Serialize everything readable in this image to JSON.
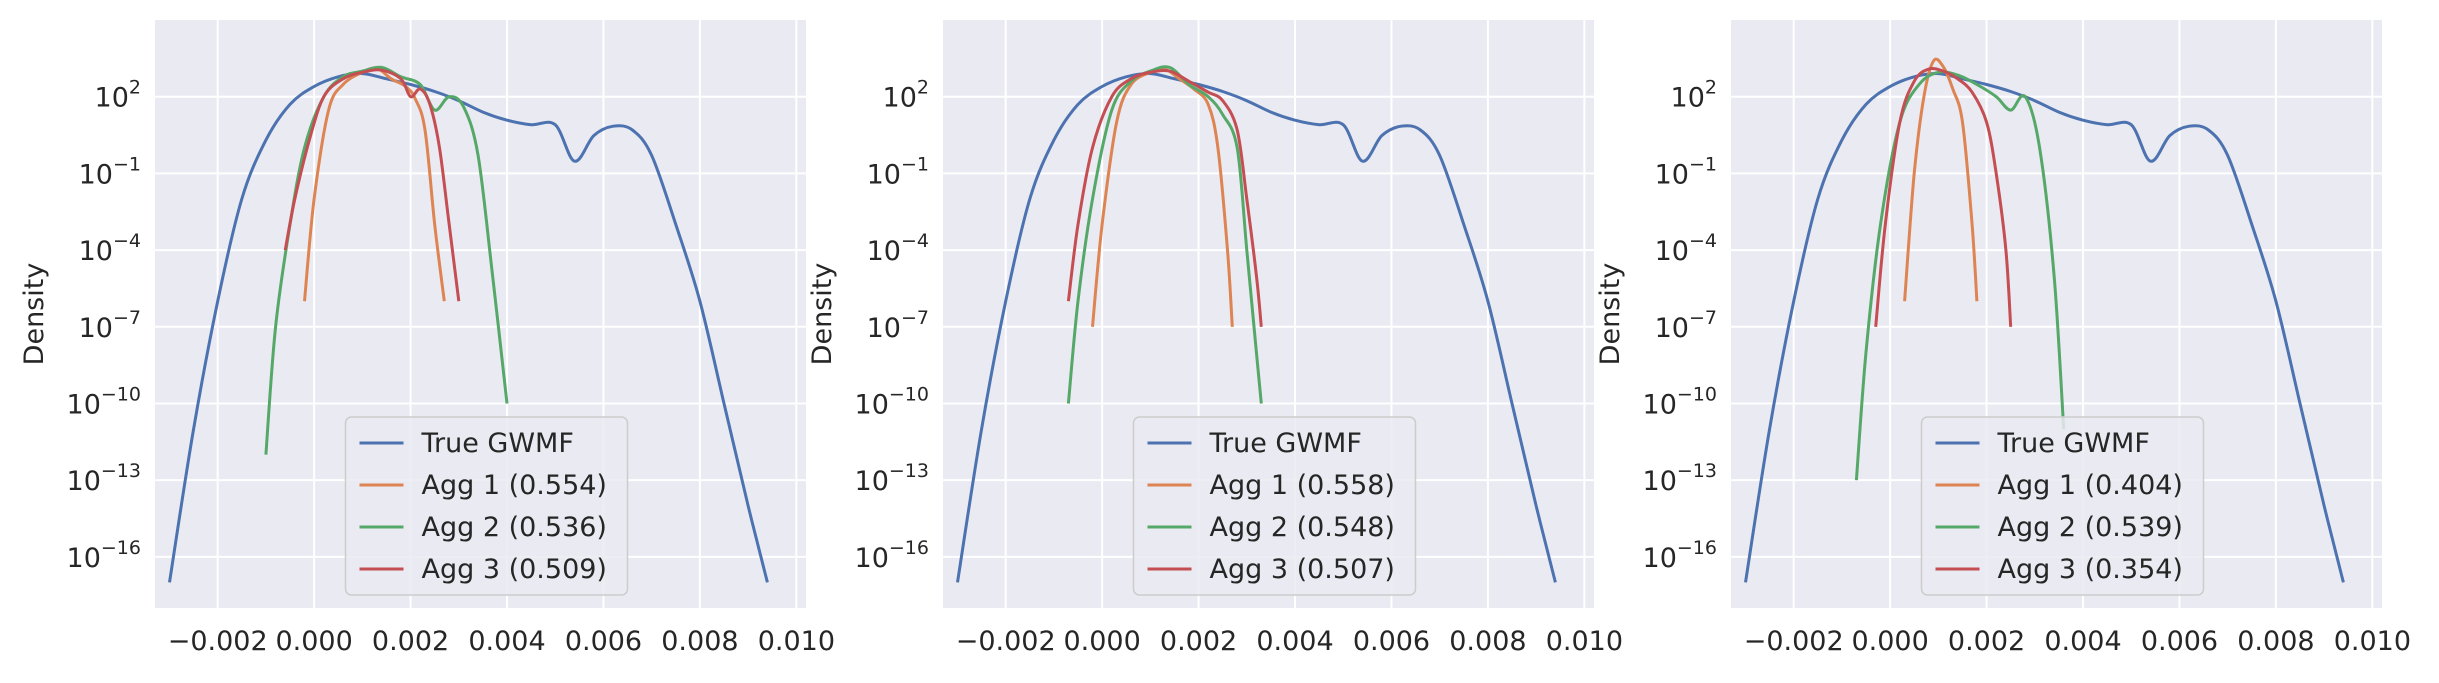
{
  "figure": {
    "background": "#ffffff",
    "panel_background": "#eaeaf2",
    "grid_color": "#ffffff"
  },
  "series_colors": {
    "True GWMF": "#4c72b0",
    "Agg 1": "#dd8452",
    "Agg 2": "#55a868",
    "Agg 3": "#c44e52"
  },
  "chart_data": [
    {
      "type": "line",
      "ylabel": "Density",
      "xlabel": "",
      "yscale": "log",
      "xlim": [
        -0.0033,
        0.0102
      ],
      "ylim": [
        1e-18,
        100000.0
      ],
      "xticks": [
        -0.002,
        0.0,
        0.002,
        0.004,
        0.006,
        0.008,
        0.01
      ],
      "xtick_labels": [
        "−0.002",
        "0.000",
        "0.002",
        "0.004",
        "0.006",
        "0.008",
        "0.010"
      ],
      "yticks_exponents": [
        2,
        -1,
        -4,
        -7,
        -10,
        -13,
        -16
      ],
      "grid": true,
      "legend_position": "lower center",
      "legend": [
        "True GWMF",
        "Agg 1 (0.554)",
        "Agg 2 (0.536)",
        "Agg 3 (0.509)"
      ],
      "series": [
        {
          "name": "True GWMF",
          "x": [
            -0.003,
            -0.0025,
            -0.002,
            -0.0015,
            -0.001,
            -0.0005,
            0.0,
            0.0005,
            0.001,
            0.0015,
            0.002,
            0.0025,
            0.003,
            0.0035,
            0.004,
            0.0045,
            0.005,
            0.0054,
            0.0058,
            0.0062,
            0.0066,
            0.007,
            0.0075,
            0.008,
            0.0085,
            0.009,
            0.0094
          ],
          "y": [
            1e-17,
            1e-11,
            1e-06,
            0.01,
            2,
            50,
            250,
            600,
            800,
            500,
            300,
            160,
            70,
            25,
            12,
            8,
            8,
            0.3,
            3,
            7,
            5,
            0.5,
            0.001,
            1e-06,
            1e-10,
            1e-14,
            1e-17
          ]
        },
        {
          "name": "Agg 1",
          "x": [
            -0.0002,
            0.0,
            0.0003,
            0.0006,
            0.001,
            0.0013,
            0.0016,
            0.0019,
            0.0021,
            0.0023,
            0.0025,
            0.0027
          ],
          "y": [
            1e-06,
            0.01,
            30,
            300,
            900,
            1300,
            500,
            250,
            80,
            5,
            0.001,
            1e-06
          ]
        },
        {
          "name": "Agg 2",
          "x": [
            -0.001,
            -0.0008,
            -0.0005,
            -0.0002,
            0.0002,
            0.0006,
            0.001,
            0.0014,
            0.0018,
            0.0022,
            0.0025,
            0.0028,
            0.0031,
            0.0034,
            0.0037,
            0.004
          ],
          "y": [
            1e-12,
            1e-07,
            0.001,
            1,
            100,
            600,
            1000,
            1400,
            600,
            300,
            30,
            100,
            40,
            0.5,
            1e-05,
            1e-10
          ]
        },
        {
          "name": "Agg 3",
          "x": [
            -0.0006,
            -0.0004,
            -0.0001,
            0.0002,
            0.0006,
            0.001,
            0.0014,
            0.0018,
            0.002,
            0.0022,
            0.0024,
            0.0026,
            0.0028,
            0.003
          ],
          "y": [
            0.0001,
            0.01,
            2,
            100,
            500,
            900,
            1100,
            500,
            100,
            200,
            50,
            1,
            0.001,
            1e-06
          ]
        }
      ]
    },
    {
      "type": "line",
      "ylabel": "Density",
      "xlabel": "",
      "yscale": "log",
      "xlim": [
        -0.0033,
        0.0102
      ],
      "ylim": [
        1e-18,
        100000.0
      ],
      "xticks": [
        -0.002,
        0.0,
        0.002,
        0.004,
        0.006,
        0.008,
        0.01
      ],
      "xtick_labels": [
        "−0.002",
        "0.000",
        "0.002",
        "0.004",
        "0.006",
        "0.008",
        "0.010"
      ],
      "yticks_exponents": [
        2,
        -1,
        -4,
        -7,
        -10,
        -13,
        -16
      ],
      "grid": true,
      "legend_position": "lower center",
      "legend": [
        "True GWMF",
        "Agg 1 (0.558)",
        "Agg 2 (0.548)",
        "Agg 3 (0.507)"
      ],
      "series": [
        {
          "name": "True GWMF",
          "x": [
            -0.003,
            -0.0025,
            -0.002,
            -0.0015,
            -0.001,
            -0.0005,
            0.0,
            0.0005,
            0.001,
            0.0015,
            0.002,
            0.0025,
            0.003,
            0.0035,
            0.004,
            0.0045,
            0.005,
            0.0054,
            0.0058,
            0.0062,
            0.0066,
            0.007,
            0.0075,
            0.008,
            0.0085,
            0.009,
            0.0094
          ],
          "y": [
            1e-17,
            1e-11,
            1e-06,
            0.01,
            2,
            50,
            250,
            600,
            800,
            500,
            300,
            160,
            70,
            25,
            12,
            8,
            8,
            0.3,
            3,
            7,
            5,
            0.5,
            0.001,
            1e-06,
            1e-10,
            1e-14,
            1e-17
          ]
        },
        {
          "name": "Agg 1",
          "x": [
            -0.0002,
            0.0,
            0.0003,
            0.0006,
            0.001,
            0.0013,
            0.0016,
            0.0019,
            0.0022,
            0.0024,
            0.0026,
            0.0027
          ],
          "y": [
            1e-07,
            0.001,
            10,
            300,
            900,
            1200,
            500,
            200,
            50,
            1,
            0.0001,
            1e-07
          ]
        },
        {
          "name": "Agg 2",
          "x": [
            -0.0007,
            -0.0005,
            -0.0002,
            0.0002,
            0.0006,
            0.001,
            0.0014,
            0.0018,
            0.0022,
            0.0025,
            0.0028,
            0.003,
            0.0032,
            0.0033
          ],
          "y": [
            1e-10,
            1e-06,
            0.01,
            30,
            400,
            1000,
            1400,
            300,
            100,
            20,
            1,
            0.0001,
            1e-08,
            1e-10
          ]
        },
        {
          "name": "Agg 3",
          "x": [
            -0.0007,
            -0.0005,
            -0.0002,
            0.0002,
            0.0006,
            0.001,
            0.0014,
            0.0018,
            0.0022,
            0.0025,
            0.0028,
            0.003,
            0.0032,
            0.0033
          ],
          "y": [
            1e-06,
            0.001,
            1,
            100,
            500,
            900,
            1000,
            400,
            150,
            70,
            5,
            0.01,
            1e-05,
            1e-07
          ]
        }
      ]
    },
    {
      "type": "line",
      "ylabel": "Density",
      "xlabel": "",
      "yscale": "log",
      "xlim": [
        -0.0033,
        0.0102
      ],
      "ylim": [
        1e-18,
        100000.0
      ],
      "xticks": [
        -0.002,
        0.0,
        0.002,
        0.004,
        0.006,
        0.008,
        0.01
      ],
      "xtick_labels": [
        "−0.002",
        "0.000",
        "0.002",
        "0.004",
        "0.006",
        "0.008",
        "0.010"
      ],
      "yticks_exponents": [
        2,
        -1,
        -4,
        -7,
        -10,
        -13,
        -16
      ],
      "grid": true,
      "legend_position": "lower center",
      "legend": [
        "True GWMF",
        "Agg 1 (0.404)",
        "Agg 2 (0.539)",
        "Agg 3 (0.354)"
      ],
      "series": [
        {
          "name": "True GWMF",
          "x": [
            -0.003,
            -0.0025,
            -0.002,
            -0.0015,
            -0.001,
            -0.0005,
            0.0,
            0.0005,
            0.001,
            0.0015,
            0.002,
            0.0025,
            0.003,
            0.0035,
            0.004,
            0.0045,
            0.005,
            0.0054,
            0.0058,
            0.0062,
            0.0066,
            0.007,
            0.0075,
            0.008,
            0.0085,
            0.009,
            0.0094
          ],
          "y": [
            1e-17,
            1e-11,
            1e-06,
            0.01,
            2,
            50,
            250,
            600,
            800,
            500,
            300,
            160,
            70,
            25,
            12,
            8,
            8,
            0.3,
            3,
            7,
            5,
            0.5,
            0.001,
            1e-06,
            1e-10,
            1e-14,
            1e-17
          ]
        },
        {
          "name": "Agg 1",
          "x": [
            0.0003,
            0.0005,
            0.0007,
            0.0009,
            0.0011,
            0.0013,
            0.0015,
            0.0017,
            0.0018
          ],
          "y": [
            1e-06,
            0.1,
            100,
            2500,
            1500,
            200,
            10,
            0.001,
            1e-06
          ]
        },
        {
          "name": "Agg 2",
          "x": [
            -0.0007,
            -0.0005,
            -0.0002,
            0.0002,
            0.0006,
            0.001,
            0.0014,
            0.0018,
            0.0022,
            0.0025,
            0.0028,
            0.0031,
            0.0034,
            0.0036
          ],
          "y": [
            1e-13,
            1e-08,
            0.001,
            10,
            300,
            900,
            700,
            300,
            100,
            30,
            100,
            1,
            1e-05,
            1e-11
          ]
        },
        {
          "name": "Agg 3",
          "x": [
            -0.0003,
            -0.0001,
            0.0002,
            0.0005,
            0.0008,
            0.0011,
            0.0014,
            0.0017,
            0.002,
            0.0022,
            0.0024,
            0.0025
          ],
          "y": [
            1e-07,
            0.001,
            10,
            400,
            1200,
            1000,
            500,
            150,
            10,
            0.1,
            0.0001,
            1e-07
          ]
        }
      ]
    }
  ]
}
